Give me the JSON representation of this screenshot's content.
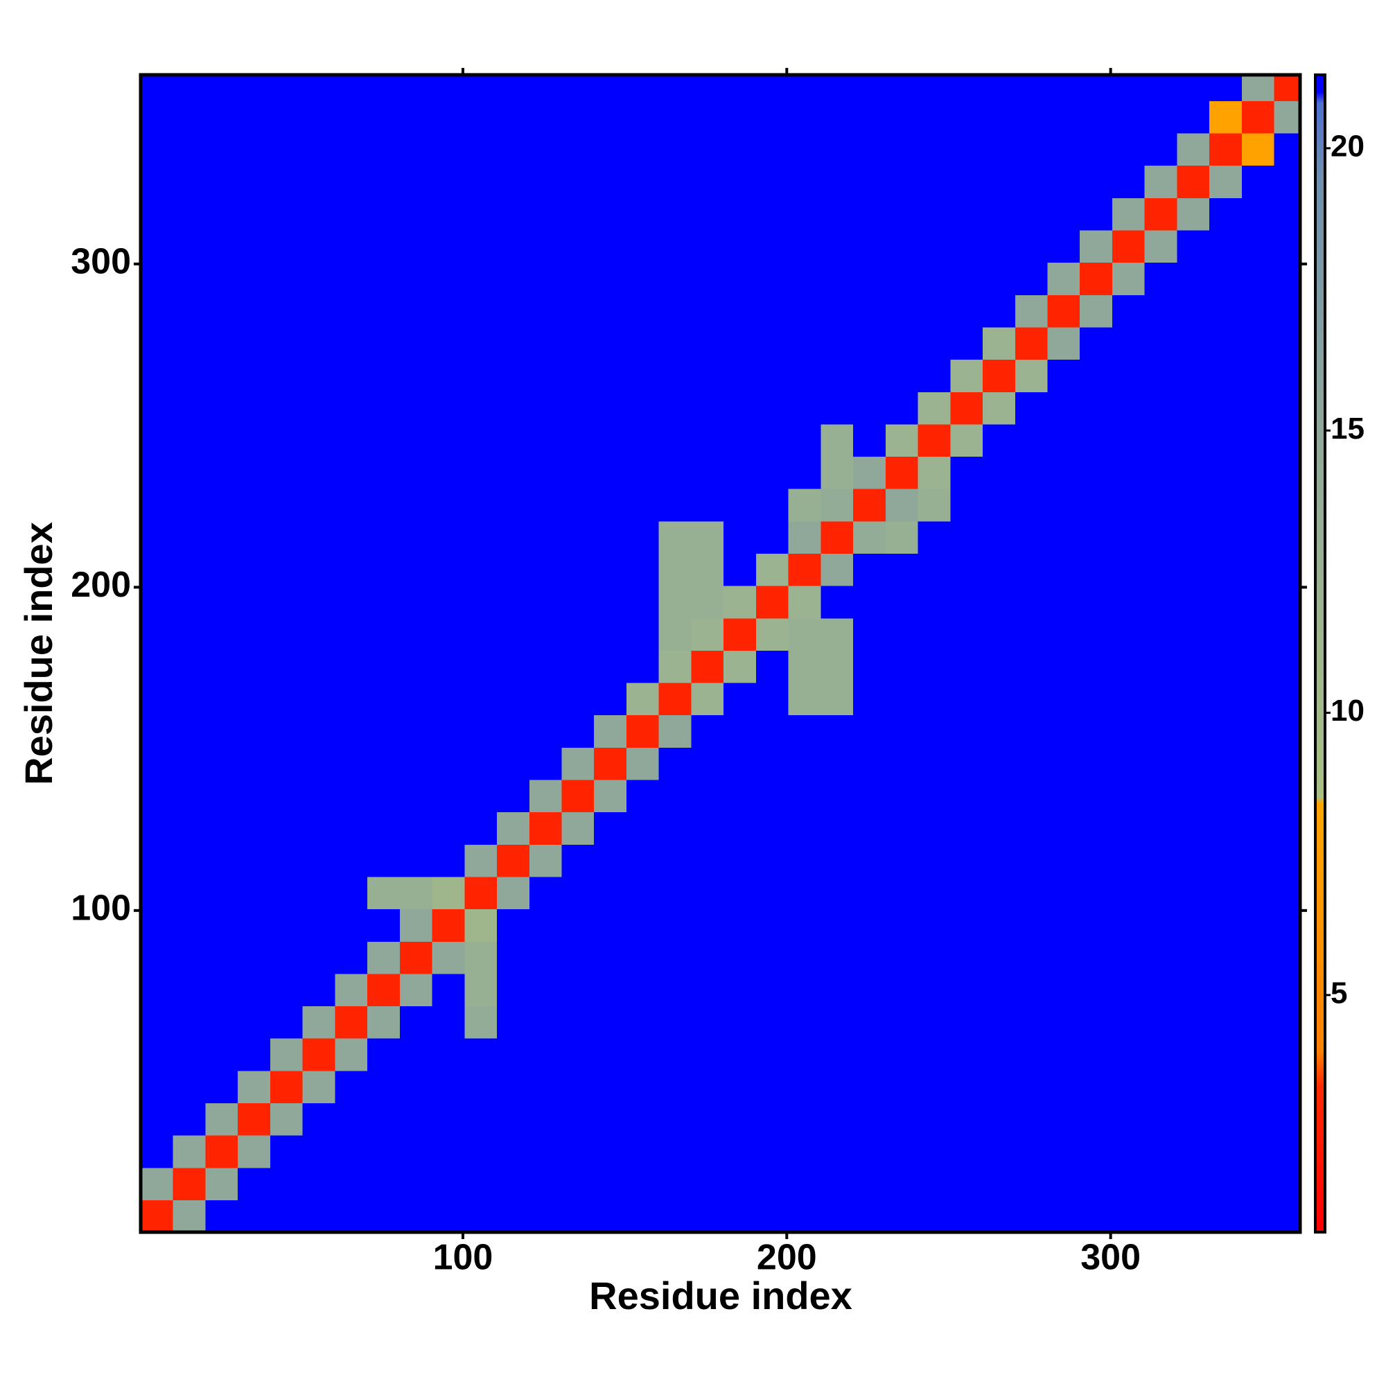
{
  "chart_data": {
    "type": "heatmap",
    "x_label": "Residue index",
    "y_label": "Residue index",
    "bins": [
      0.5,
      10.5,
      20.5,
      30.5,
      40.5,
      50.5,
      60.5,
      70.5,
      80.5,
      90.5,
      100.5,
      110.5,
      120.5,
      130.5,
      140.5,
      150.5,
      160.5,
      170.5,
      180.5,
      190.5,
      200.5,
      210.5,
      220.5,
      230.5,
      240.5,
      250.5,
      260.5,
      270.5,
      280.5,
      290.5,
      300.5,
      310.5,
      320.5,
      330.5,
      340.5,
      350.5,
      358.5
    ],
    "z": [
      [
        3,
        15,
        21,
        21,
        21,
        21,
        21,
        21,
        21,
        21,
        21,
        21,
        21,
        21,
        21,
        21,
        21,
        21,
        21,
        21,
        21,
        21,
        21,
        21,
        21,
        21,
        21,
        21,
        21,
        21,
        21,
        21,
        21,
        21,
        21,
        21
      ],
      [
        15,
        3,
        15,
        21,
        21,
        21,
        21,
        21,
        21,
        21,
        21,
        21,
        21,
        21,
        21,
        21,
        21,
        21,
        21,
        21,
        21,
        21,
        21,
        21,
        21,
        21,
        21,
        21,
        21,
        21,
        21,
        21,
        21,
        21,
        21,
        21
      ],
      [
        21,
        15,
        3,
        15,
        21,
        21,
        21,
        21,
        21,
        21,
        21,
        21,
        21,
        21,
        21,
        21,
        21,
        21,
        21,
        21,
        21,
        21,
        21,
        21,
        21,
        21,
        21,
        21,
        21,
        21,
        21,
        21,
        21,
        21,
        21,
        21
      ],
      [
        21,
        21,
        15,
        3,
        15,
        21,
        21,
        21,
        21,
        21,
        21,
        21,
        21,
        21,
        21,
        21,
        21,
        21,
        21,
        21,
        21,
        21,
        21,
        21,
        21,
        21,
        21,
        21,
        21,
        21,
        21,
        21,
        21,
        21,
        21,
        21
      ],
      [
        21,
        21,
        21,
        15,
        3,
        15,
        21,
        21,
        21,
        21,
        21,
        21,
        21,
        21,
        21,
        21,
        21,
        21,
        21,
        21,
        21,
        21,
        21,
        21,
        21,
        21,
        21,
        21,
        21,
        21,
        21,
        21,
        21,
        21,
        21,
        21
      ],
      [
        21,
        21,
        21,
        21,
        15,
        3,
        15,
        21,
        21,
        21,
        21,
        21,
        21,
        21,
        21,
        21,
        21,
        21,
        21,
        21,
        21,
        21,
        21,
        21,
        21,
        21,
        21,
        21,
        21,
        21,
        21,
        21,
        21,
        21,
        21,
        21
      ],
      [
        21,
        21,
        21,
        21,
        21,
        15,
        3,
        15,
        21,
        21,
        14,
        21,
        21,
        21,
        21,
        21,
        21,
        21,
        21,
        21,
        21,
        21,
        21,
        21,
        21,
        21,
        21,
        21,
        21,
        21,
        21,
        21,
        21,
        21,
        21,
        21
      ],
      [
        21,
        21,
        21,
        21,
        21,
        21,
        15,
        3,
        15,
        21,
        13,
        21,
        21,
        21,
        21,
        21,
        21,
        21,
        21,
        21,
        21,
        21,
        21,
        21,
        21,
        21,
        21,
        21,
        21,
        21,
        21,
        21,
        21,
        21,
        21,
        21
      ],
      [
        21,
        21,
        21,
        21,
        21,
        21,
        21,
        15,
        3,
        15,
        13,
        21,
        21,
        21,
        21,
        21,
        21,
        21,
        21,
        21,
        21,
        21,
        21,
        21,
        21,
        21,
        21,
        21,
        21,
        21,
        21,
        21,
        21,
        21,
        21,
        21
      ],
      [
        21,
        21,
        21,
        21,
        21,
        21,
        21,
        21,
        15,
        3,
        11,
        21,
        21,
        21,
        21,
        21,
        21,
        21,
        21,
        21,
        21,
        21,
        21,
        21,
        21,
        21,
        21,
        21,
        21,
        21,
        21,
        21,
        21,
        21,
        21,
        21
      ],
      [
        21,
        21,
        21,
        21,
        21,
        21,
        21,
        13,
        13,
        11,
        3,
        15,
        21,
        21,
        21,
        21,
        21,
        21,
        21,
        21,
        21,
        21,
        21,
        21,
        21,
        21,
        21,
        21,
        21,
        21,
        21,
        21,
        21,
        21,
        21,
        21
      ],
      [
        21,
        21,
        21,
        21,
        21,
        21,
        21,
        21,
        21,
        21,
        15,
        3,
        15,
        21,
        21,
        21,
        21,
        21,
        21,
        21,
        21,
        21,
        21,
        21,
        21,
        21,
        21,
        21,
        21,
        21,
        21,
        21,
        21,
        21,
        21,
        21
      ],
      [
        21,
        21,
        21,
        21,
        21,
        21,
        21,
        21,
        21,
        21,
        21,
        15,
        3,
        15,
        21,
        21,
        21,
        21,
        21,
        21,
        21,
        21,
        21,
        21,
        21,
        21,
        21,
        21,
        21,
        21,
        21,
        21,
        21,
        21,
        21,
        21
      ],
      [
        21,
        21,
        21,
        21,
        21,
        21,
        21,
        21,
        21,
        21,
        21,
        21,
        15,
        3,
        15,
        21,
        21,
        21,
        21,
        21,
        21,
        21,
        21,
        21,
        21,
        21,
        21,
        21,
        21,
        21,
        21,
        21,
        21,
        21,
        21,
        21
      ],
      [
        21,
        21,
        21,
        21,
        21,
        21,
        21,
        21,
        21,
        21,
        21,
        21,
        21,
        15,
        3,
        15,
        21,
        21,
        21,
        21,
        21,
        21,
        21,
        21,
        21,
        21,
        21,
        21,
        21,
        21,
        21,
        21,
        21,
        21,
        21,
        21
      ],
      [
        21,
        21,
        21,
        21,
        21,
        21,
        21,
        21,
        21,
        21,
        21,
        21,
        21,
        21,
        15,
        3,
        15,
        21,
        21,
        21,
        21,
        21,
        21,
        21,
        21,
        21,
        21,
        21,
        21,
        21,
        21,
        21,
        21,
        21,
        21,
        21
      ],
      [
        21,
        21,
        21,
        21,
        21,
        21,
        21,
        21,
        21,
        21,
        21,
        21,
        21,
        21,
        21,
        12,
        3,
        12,
        21,
        21,
        13,
        13,
        21,
        21,
        21,
        21,
        21,
        21,
        21,
        21,
        21,
        21,
        21,
        21,
        21,
        21
      ],
      [
        21,
        21,
        21,
        21,
        21,
        21,
        21,
        21,
        21,
        21,
        21,
        21,
        21,
        21,
        21,
        21,
        12,
        3,
        12,
        21,
        13,
        13,
        21,
        21,
        21,
        21,
        21,
        21,
        21,
        21,
        21,
        21,
        21,
        21,
        21,
        21
      ],
      [
        21,
        21,
        21,
        21,
        21,
        21,
        21,
        21,
        21,
        21,
        21,
        21,
        21,
        21,
        21,
        21,
        13,
        12,
        3,
        12,
        13,
        13,
        21,
        21,
        21,
        21,
        21,
        21,
        21,
        21,
        21,
        21,
        21,
        21,
        21,
        21
      ],
      [
        21,
        21,
        21,
        21,
        21,
        21,
        21,
        21,
        21,
        21,
        21,
        21,
        21,
        21,
        21,
        21,
        13,
        13,
        12,
        3,
        12,
        21,
        21,
        21,
        21,
        21,
        21,
        21,
        21,
        21,
        21,
        21,
        21,
        21,
        21,
        21
      ],
      [
        21,
        21,
        21,
        21,
        21,
        21,
        21,
        21,
        21,
        21,
        21,
        21,
        21,
        21,
        21,
        21,
        13,
        13,
        21,
        12,
        3,
        15,
        21,
        21,
        21,
        21,
        21,
        21,
        21,
        21,
        21,
        21,
        21,
        21,
        21,
        21
      ],
      [
        21,
        21,
        21,
        21,
        21,
        21,
        21,
        21,
        21,
        21,
        21,
        21,
        21,
        21,
        21,
        21,
        13,
        13,
        21,
        21,
        15,
        3,
        14,
        13,
        21,
        21,
        21,
        21,
        21,
        21,
        21,
        21,
        21,
        21,
        21,
        21
      ],
      [
        21,
        21,
        21,
        21,
        21,
        21,
        21,
        21,
        21,
        21,
        21,
        21,
        21,
        21,
        21,
        21,
        21,
        21,
        21,
        21,
        13,
        14,
        3,
        15,
        13,
        21,
        21,
        21,
        21,
        21,
        21,
        21,
        21,
        21,
        21,
        21
      ],
      [
        21,
        21,
        21,
        21,
        21,
        21,
        21,
        21,
        21,
        21,
        21,
        21,
        21,
        21,
        21,
        21,
        21,
        21,
        21,
        21,
        21,
        13,
        15,
        3,
        12,
        21,
        21,
        21,
        21,
        21,
        21,
        21,
        21,
        21,
        21,
        21
      ],
      [
        21,
        21,
        21,
        21,
        21,
        21,
        21,
        21,
        21,
        21,
        21,
        21,
        21,
        21,
        21,
        21,
        21,
        21,
        21,
        21,
        21,
        13,
        21,
        12,
        3,
        12,
        21,
        21,
        21,
        21,
        21,
        21,
        21,
        21,
        21,
        21
      ],
      [
        21,
        21,
        21,
        21,
        21,
        21,
        21,
        21,
        21,
        21,
        21,
        21,
        21,
        21,
        21,
        21,
        21,
        21,
        21,
        21,
        21,
        21,
        21,
        21,
        12,
        3,
        12,
        21,
        21,
        21,
        21,
        21,
        21,
        21,
        21,
        21
      ],
      [
        21,
        21,
        21,
        21,
        21,
        21,
        21,
        21,
        21,
        21,
        21,
        21,
        21,
        21,
        21,
        21,
        21,
        21,
        21,
        21,
        21,
        21,
        21,
        21,
        21,
        12,
        3,
        12,
        21,
        21,
        21,
        21,
        21,
        21,
        21,
        21
      ],
      [
        21,
        21,
        21,
        21,
        21,
        21,
        21,
        21,
        21,
        21,
        21,
        21,
        21,
        21,
        21,
        21,
        21,
        21,
        21,
        21,
        21,
        21,
        21,
        21,
        21,
        21,
        12,
        3,
        15,
        21,
        21,
        21,
        21,
        21,
        21,
        21
      ],
      [
        21,
        21,
        21,
        21,
        21,
        21,
        21,
        21,
        21,
        21,
        21,
        21,
        21,
        21,
        21,
        21,
        21,
        21,
        21,
        21,
        21,
        21,
        21,
        21,
        21,
        21,
        21,
        15,
        3,
        15,
        21,
        21,
        21,
        21,
        21,
        21
      ],
      [
        21,
        21,
        21,
        21,
        21,
        21,
        21,
        21,
        21,
        21,
        21,
        21,
        21,
        21,
        21,
        21,
        21,
        21,
        21,
        21,
        21,
        21,
        21,
        21,
        21,
        21,
        21,
        21,
        15,
        3,
        15,
        21,
        21,
        21,
        21,
        21
      ],
      [
        21,
        21,
        21,
        21,
        21,
        21,
        21,
        21,
        21,
        21,
        21,
        21,
        21,
        21,
        21,
        21,
        21,
        21,
        21,
        21,
        21,
        21,
        21,
        21,
        21,
        21,
        21,
        21,
        21,
        15,
        3,
        15,
        21,
        21,
        21,
        21
      ],
      [
        21,
        21,
        21,
        21,
        21,
        21,
        21,
        21,
        21,
        21,
        21,
        21,
        21,
        21,
        21,
        21,
        21,
        21,
        21,
        21,
        21,
        21,
        21,
        21,
        21,
        21,
        21,
        21,
        21,
        21,
        15,
        3,
        15,
        21,
        21,
        21
      ],
      [
        21,
        21,
        21,
        21,
        21,
        21,
        21,
        21,
        21,
        21,
        21,
        21,
        21,
        21,
        21,
        21,
        21,
        21,
        21,
        21,
        21,
        21,
        21,
        21,
        21,
        21,
        21,
        21,
        21,
        21,
        21,
        15,
        3,
        15,
        21,
        21
      ],
      [
        21,
        21,
        21,
        21,
        21,
        21,
        21,
        21,
        21,
        21,
        21,
        21,
        21,
        21,
        21,
        21,
        21,
        21,
        21,
        21,
        21,
        21,
        21,
        21,
        21,
        21,
        21,
        21,
        21,
        21,
        21,
        21,
        15,
        3,
        8,
        21
      ],
      [
        21,
        21,
        21,
        21,
        21,
        21,
        21,
        21,
        21,
        21,
        21,
        21,
        21,
        21,
        21,
        21,
        21,
        21,
        21,
        21,
        21,
        21,
        21,
        21,
        21,
        21,
        21,
        21,
        21,
        21,
        21,
        21,
        21,
        8,
        3,
        15
      ],
      [
        21,
        21,
        21,
        21,
        21,
        21,
        21,
        21,
        21,
        21,
        21,
        21,
        21,
        21,
        21,
        21,
        21,
        21,
        21,
        21,
        21,
        21,
        21,
        21,
        21,
        21,
        21,
        21,
        21,
        21,
        21,
        21,
        21,
        21,
        15,
        3
      ]
    ],
    "xlim": [
      0.5,
      358.5
    ],
    "ylim": [
      0.5,
      358.5
    ],
    "xticks": [
      100,
      200,
      300
    ],
    "yticks": [
      100,
      200,
      300
    ],
    "zlim": [
      0.8,
      21.3
    ],
    "zticks": [
      5,
      10,
      15,
      20
    ],
    "colorscale": [
      [
        0.8,
        "#ff0000"
      ],
      [
        3.4,
        "#ff2a00"
      ],
      [
        4.0,
        "#ff8000"
      ],
      [
        8.4,
        "#ffa500"
      ],
      [
        8.5,
        "#a9bf84"
      ],
      [
        15,
        "#8fa89a"
      ],
      [
        19.5,
        "#6f8fae"
      ],
      [
        20.8,
        "#4f6fd0"
      ],
      [
        21,
        "#0000ff"
      ],
      [
        21.3,
        "#0000ff"
      ]
    ]
  }
}
